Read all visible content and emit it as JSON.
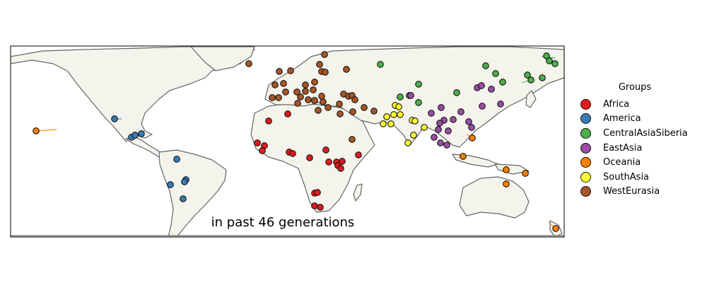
{
  "map": {
    "caption": "in past 46 generations"
  },
  "legend": {
    "title": "Groups",
    "items": [
      {
        "label": "Africa",
        "color": "#e41a1c"
      },
      {
        "label": "America",
        "color": "#377eb8"
      },
      {
        "label": "CentralAsiaSiberia",
        "color": "#4daf4a"
      },
      {
        "label": "EastAsia",
        "color": "#984ea3"
      },
      {
        "label": "Oceania",
        "color": "#ff7f00"
      },
      {
        "label": "SouthAsia",
        "color": "#ffff33"
      },
      {
        "label": "WestEurasia",
        "color": "#a65628"
      }
    ]
  }
}
